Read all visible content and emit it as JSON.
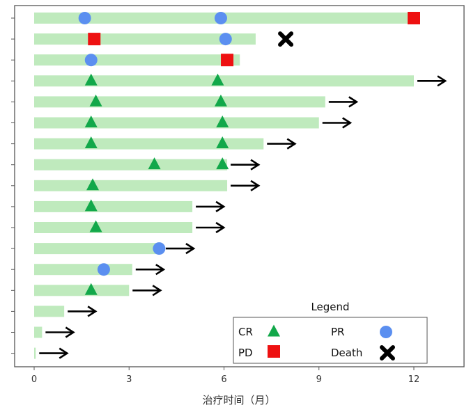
{
  "chart_data": {
    "type": "swimmer",
    "xlabel": "治疗时间（月）",
    "xlim": [
      -0.6,
      13.6
    ],
    "xticks": [
      0,
      3,
      6,
      9,
      12
    ],
    "colors": {
      "bar": "#bfeabd",
      "CR": "#12a84a",
      "PR": "#5b8ff0",
      "PD": "#ee1111",
      "Death": "#000000",
      "arrow": "#000000",
      "frame": "#555555"
    },
    "patients": [
      {
        "duration": 12.0,
        "ongoing": false,
        "events": [
          {
            "type": "PR",
            "t": 1.6
          },
          {
            "type": "PR",
            "t": 5.9
          },
          {
            "type": "PD",
            "t": 12.0
          }
        ]
      },
      {
        "duration": 7.0,
        "ongoing": false,
        "events": [
          {
            "type": "PD",
            "t": 1.9
          },
          {
            "type": "PR",
            "t": 6.05
          },
          {
            "type": "Death",
            "t": 7.95
          }
        ]
      },
      {
        "duration": 6.5,
        "ongoing": false,
        "events": [
          {
            "type": "PR",
            "t": 1.8
          },
          {
            "type": "PD",
            "t": 6.1
          }
        ]
      },
      {
        "duration": 12.0,
        "ongoing": true,
        "events": [
          {
            "type": "CR",
            "t": 1.8
          },
          {
            "type": "CR",
            "t": 5.8
          }
        ]
      },
      {
        "duration": 9.2,
        "ongoing": true,
        "events": [
          {
            "type": "CR",
            "t": 1.95
          },
          {
            "type": "CR",
            "t": 5.9
          }
        ]
      },
      {
        "duration": 9.0,
        "ongoing": true,
        "events": [
          {
            "type": "CR",
            "t": 1.8
          },
          {
            "type": "CR",
            "t": 5.95
          }
        ]
      },
      {
        "duration": 7.25,
        "ongoing": true,
        "events": [
          {
            "type": "CR",
            "t": 1.8
          },
          {
            "type": "CR",
            "t": 5.95
          }
        ]
      },
      {
        "duration": 6.1,
        "ongoing": true,
        "events": [
          {
            "type": "CR",
            "t": 3.8
          },
          {
            "type": "CR",
            "t": 5.95
          }
        ]
      },
      {
        "duration": 6.1,
        "ongoing": true,
        "events": [
          {
            "type": "CR",
            "t": 1.85
          }
        ]
      },
      {
        "duration": 5.0,
        "ongoing": true,
        "events": [
          {
            "type": "CR",
            "t": 1.8
          }
        ]
      },
      {
        "duration": 5.0,
        "ongoing": true,
        "events": [
          {
            "type": "CR",
            "t": 1.95
          }
        ]
      },
      {
        "duration": 4.05,
        "ongoing": true,
        "events": [
          {
            "type": "PR",
            "t": 3.95
          }
        ]
      },
      {
        "duration": 3.1,
        "ongoing": true,
        "events": [
          {
            "type": "PR",
            "t": 2.2
          }
        ]
      },
      {
        "duration": 3.0,
        "ongoing": true,
        "events": [
          {
            "type": "CR",
            "t": 1.8
          }
        ]
      },
      {
        "duration": 0.95,
        "ongoing": true,
        "events": []
      },
      {
        "duration": 0.25,
        "ongoing": true,
        "events": []
      },
      {
        "duration": 0.05,
        "ongoing": true,
        "events": []
      }
    ],
    "legend": {
      "title": "Legend",
      "position": "bottom-right",
      "items": [
        {
          "label": "CR",
          "symbol": "CR"
        },
        {
          "label": "PR",
          "symbol": "PR"
        },
        {
          "label": "PD",
          "symbol": "PD"
        },
        {
          "label": "Death",
          "symbol": "Death"
        }
      ]
    }
  }
}
